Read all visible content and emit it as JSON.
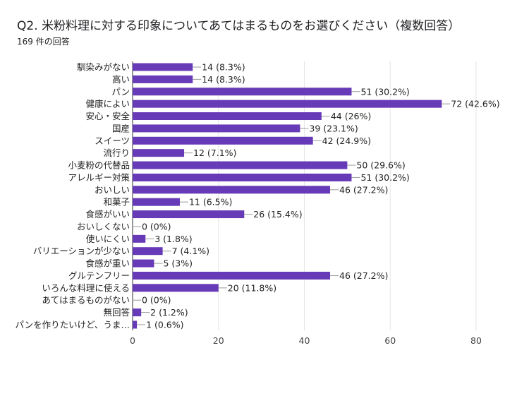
{
  "chart_data": {
    "type": "bar",
    "orientation": "horizontal",
    "title": "Q2. 米粉料理に対する印象についてあてはまるものをお選びください（複数回答）",
    "subtitle": "169 件の回答",
    "categories": [
      "馴染みがない",
      "高い",
      "パン",
      "健康によい",
      "安心・安全",
      "国産",
      "スイーツ",
      "流行り",
      "小麦粉の代替品",
      "アレルギー対策",
      "おいしい",
      "和菓子",
      "食感がいい",
      "おいしくない",
      "使いにくい",
      "バリエーションが少ない",
      "食感が重い",
      "グルテンフリー",
      "いろんな料理に使える",
      "あてはまるものがない",
      "無回答",
      "パンを作りたいけど、うま…"
    ],
    "values": [
      14,
      14,
      51,
      72,
      44,
      39,
      42,
      12,
      50,
      51,
      46,
      11,
      26,
      0,
      3,
      7,
      5,
      46,
      20,
      0,
      2,
      1
    ],
    "data_labels": [
      "14 (8.3%)",
      "14 (8.3%)",
      "51 (30.2%)",
      "72 (42.6%)",
      "44 (26%)",
      "39 (23.1%)",
      "42 (24.9%)",
      "12 (7.1%)",
      "50 (29.6%)",
      "51 (30.2%)",
      "46 (27.2%)",
      "11 (6.5%)",
      "26 (15.4%)",
      "0 (0%)",
      "3 (1.8%)",
      "7 (4.1%)",
      "5 (3%)",
      "46 (27.2%)",
      "20 (11.8%)",
      "0 (0%)",
      "2 (1.2%)",
      "1 (0.6%)"
    ],
    "xlim": [
      0,
      80
    ],
    "xticks": [
      "0",
      "20",
      "40",
      "60",
      "80"
    ],
    "xtick_values": [
      0,
      20,
      40,
      60,
      80
    ],
    "grid": true,
    "bar_color": "#673ab7"
  }
}
